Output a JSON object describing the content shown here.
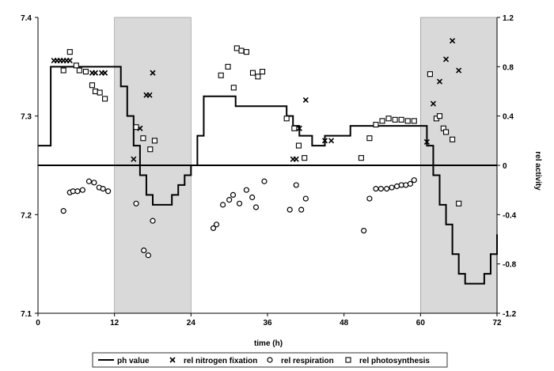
{
  "chart_data": {
    "type": "line",
    "xlabel": "time (h)",
    "ylabel_left": "",
    "ylabel_right": "rel activity",
    "xlim": [
      0,
      72
    ],
    "ylim_left": [
      7.1,
      7.4
    ],
    "ylim_right": [
      -1.2,
      1.2
    ],
    "x_ticks": [
      0,
      12,
      24,
      36,
      48,
      60,
      72
    ],
    "y_left_ticks": [
      7.1,
      7.2,
      7.3,
      7.4
    ],
    "y_left_tick_labels": [
      "7.1",
      "7.2",
      "7.3",
      "7.4"
    ],
    "y_right_ticks": [
      -1.2,
      -0.8,
      -0.4,
      0,
      0.4,
      0.8,
      1.2
    ],
    "y_right_tick_labels": [
      "-1.2",
      "-0.8",
      "-0.4",
      "0",
      "0.4",
      "0.8",
      "1.2"
    ],
    "grid": false,
    "legend_position": "bottom",
    "dark_periods": [
      [
        12,
        24
      ],
      [
        60,
        72
      ]
    ],
    "shade_color": "#d9d9d9",
    "series": [
      {
        "name": "ph value",
        "axis": "left",
        "style": "line",
        "color": "#000000",
        "x": [
          0,
          2,
          3,
          4,
          5,
          6,
          7,
          8,
          9,
          10,
          11,
          12,
          13,
          14,
          15,
          16,
          17,
          18,
          19,
          20,
          21,
          22,
          23,
          24,
          25,
          26,
          27,
          28,
          29,
          30,
          31,
          32,
          33,
          34,
          35,
          36,
          37,
          38,
          39,
          40,
          41,
          42,
          43,
          44,
          45,
          46,
          47,
          48,
          49,
          50,
          51,
          52,
          53,
          54,
          55,
          56,
          57,
          58,
          59,
          60,
          61,
          62,
          63,
          64,
          65,
          66,
          67,
          68,
          69,
          70,
          71,
          72
        ],
        "y": [
          7.27,
          7.35,
          7.35,
          7.35,
          7.35,
          7.35,
          7.35,
          7.35,
          7.35,
          7.35,
          7.35,
          7.35,
          7.33,
          7.3,
          7.27,
          7.24,
          7.22,
          7.21,
          7.21,
          7.21,
          7.22,
          7.23,
          7.24,
          7.25,
          7.28,
          7.32,
          7.32,
          7.32,
          7.32,
          7.32,
          7.31,
          7.31,
          7.31,
          7.31,
          7.31,
          7.31,
          7.31,
          7.31,
          7.3,
          7.29,
          7.28,
          7.28,
          7.27,
          7.27,
          7.28,
          7.28,
          7.28,
          7.28,
          7.29,
          7.29,
          7.29,
          7.29,
          7.29,
          7.29,
          7.29,
          7.29,
          7.29,
          7.29,
          7.29,
          7.29,
          7.27,
          7.24,
          7.21,
          7.19,
          7.16,
          7.14,
          7.13,
          7.13,
          7.13,
          7.14,
          7.16,
          7.18
        ]
      },
      {
        "name": "rel nitrogen fixation",
        "axis": "right",
        "style": "marker",
        "marker": "x",
        "color": "#000000",
        "x": [
          2.5,
          3,
          3.5,
          4,
          4.5,
          5,
          8.5,
          9,
          10,
          10.5,
          15,
          16,
          17,
          17.5,
          18,
          40,
          40.5,
          41,
          42,
          45,
          46,
          61,
          62,
          63,
          64,
          65,
          66
        ],
        "y": [
          0.85,
          0.85,
          0.85,
          0.85,
          0.85,
          0.85,
          0.75,
          0.75,
          0.75,
          0.75,
          0.05,
          0.3,
          0.57,
          0.57,
          0.75,
          0.05,
          0.05,
          0.3,
          0.53,
          0.2,
          0.2,
          0.19,
          0.5,
          0.68,
          0.86,
          1.01,
          0.77
        ]
      },
      {
        "name": "rel respiration",
        "axis": "right",
        "style": "marker",
        "marker": "o",
        "color": "#000000",
        "x": [
          4,
          5,
          5.5,
          6.2,
          7,
          8,
          8.8,
          9.6,
          10.2,
          11,
          15.4,
          16.6,
          17.3,
          18,
          27.5,
          28,
          29,
          30,
          30.6,
          31.6,
          32.7,
          33.6,
          34.2,
          35.5,
          39.5,
          40.5,
          41.3,
          42,
          51.1,
          52,
          53,
          53.8,
          54.7,
          55.5,
          56.3,
          57,
          57.7,
          58.4,
          59
        ],
        "y": [
          -0.37,
          -0.22,
          -0.21,
          -0.21,
          -0.2,
          -0.13,
          -0.14,
          -0.18,
          -0.19,
          -0.21,
          -0.31,
          -0.69,
          -0.73,
          -0.45,
          -0.51,
          -0.48,
          -0.32,
          -0.28,
          -0.24,
          -0.31,
          -0.2,
          -0.26,
          -0.34,
          -0.13,
          -0.36,
          -0.16,
          -0.36,
          -0.27,
          -0.53,
          -0.27,
          -0.19,
          -0.19,
          -0.19,
          -0.18,
          -0.17,
          -0.16,
          -0.16,
          -0.15,
          -0.12
        ]
      },
      {
        "name": "rel photosynthesis",
        "axis": "right",
        "style": "marker",
        "marker": "square",
        "color": "#000000",
        "x": [
          4,
          5,
          6,
          6.5,
          7.5,
          8.5,
          9,
          9.7,
          10.5,
          15.4,
          16.5,
          17.6,
          18.3,
          28.7,
          29.8,
          30.7,
          31.2,
          31.9,
          32.7,
          33.7,
          34.5,
          35.2,
          39,
          40.2,
          40.9,
          41.8,
          50.7,
          52,
          53,
          54,
          55,
          56,
          57,
          58,
          59,
          61.5,
          62.5,
          63,
          63.6,
          64,
          65,
          66
        ],
        "y": [
          0.77,
          0.92,
          0.81,
          0.77,
          0.76,
          0.65,
          0.6,
          0.59,
          0.54,
          0.31,
          0.22,
          0.13,
          0.2,
          0.73,
          0.8,
          0.63,
          0.95,
          0.93,
          0.92,
          0.75,
          0.72,
          0.76,
          0.38,
          0.3,
          0.16,
          0.06,
          0.06,
          0.22,
          0.33,
          0.36,
          0.38,
          0.37,
          0.37,
          0.36,
          0.36,
          0.74,
          0.38,
          0.4,
          0.3,
          0.27,
          0.21,
          -0.31
        ]
      }
    ],
    "legend": [
      {
        "label": "ph value",
        "marker": "line"
      },
      {
        "label": "rel nitrogen fixation",
        "marker": "x"
      },
      {
        "label": "rel respiration",
        "marker": "o"
      },
      {
        "label": "rel photosynthesis",
        "marker": "square"
      }
    ]
  }
}
